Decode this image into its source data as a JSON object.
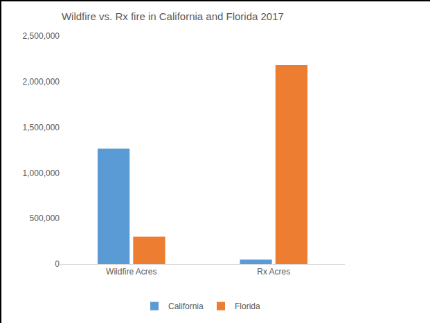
{
  "chart_data": {
    "type": "bar",
    "title": "Wildfire vs. Rx fire in California and Florida 2017",
    "categories": [
      "Wildfire Acres",
      "Rx Acres"
    ],
    "series": [
      {
        "name": "California",
        "color": "#5b9bd5",
        "values": [
          1265000,
          50000
        ]
      },
      {
        "name": "Florida",
        "color": "#ed7d31",
        "values": [
          300000,
          2180000
        ]
      }
    ],
    "ylim": [
      0,
      2500000
    ],
    "yticks": [
      0,
      {
        "value": 500000,
        "label": "500,000"
      },
      {
        "value": 1000000,
        "label": "1,000,000"
      },
      {
        "value": 1500000,
        "label": "1,500,000"
      },
      {
        "value": 2000000,
        "label": "2,000,000"
      },
      {
        "value": 2500000,
        "label": "2,500,000"
      }
    ],
    "grid": false,
    "legend": "bottom"
  }
}
